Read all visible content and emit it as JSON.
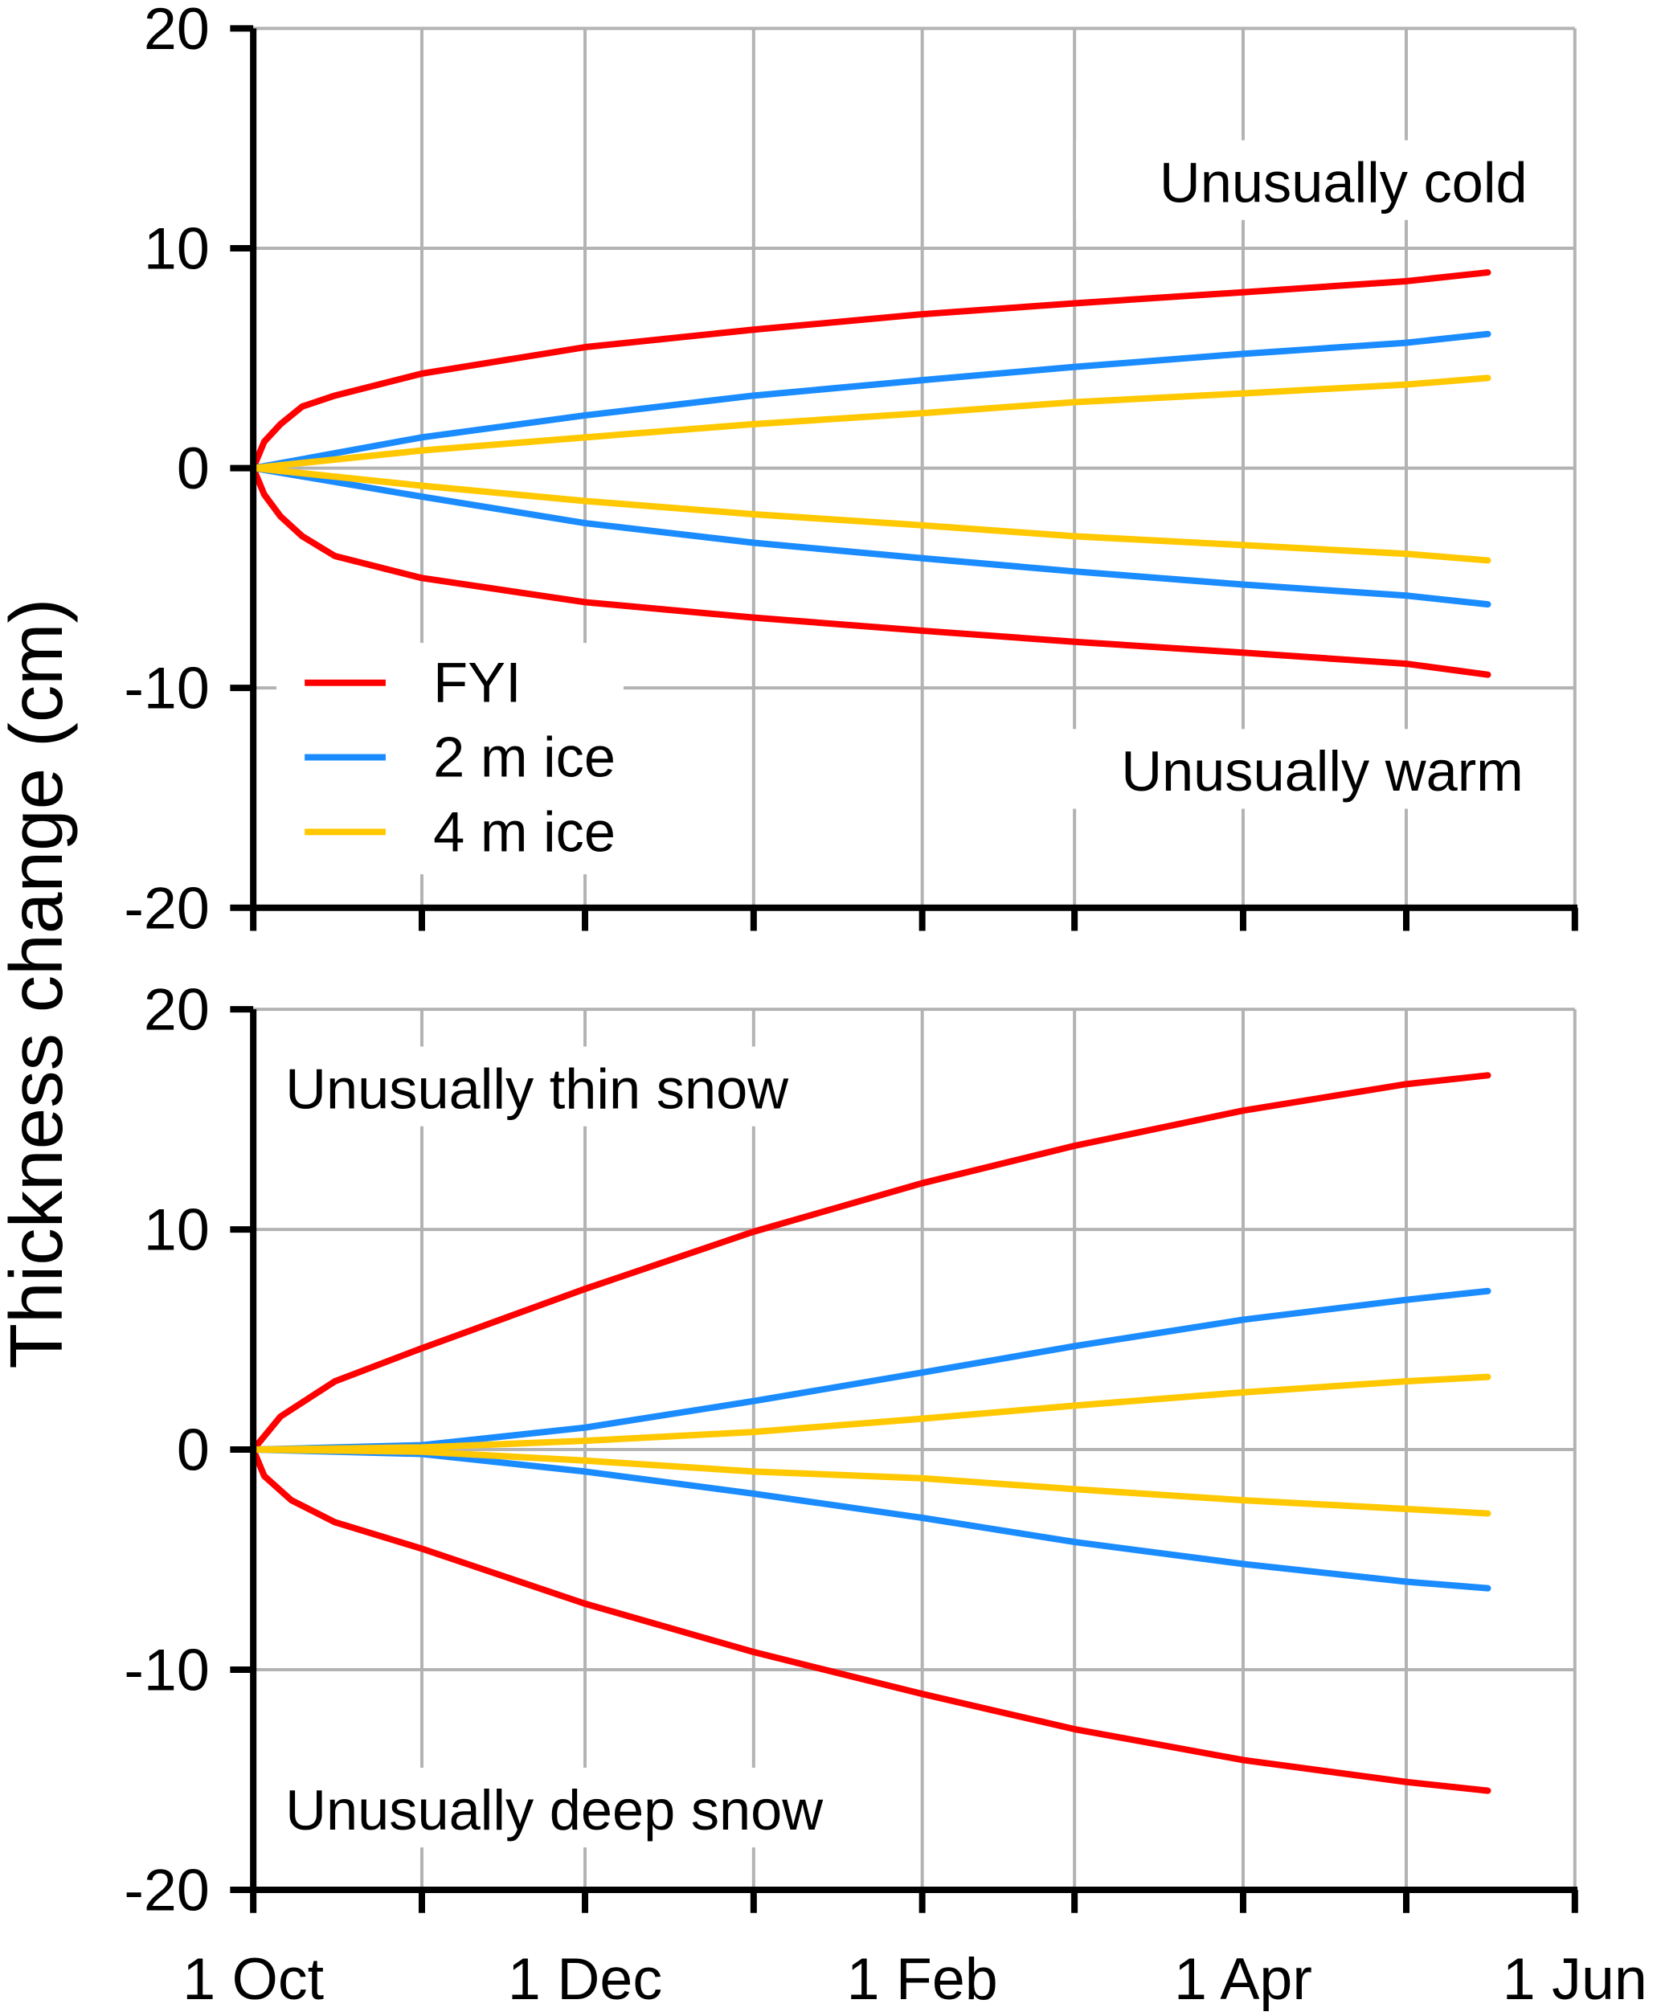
{
  "ylabel": "Thickness change (cm)",
  "x_tick_labels": [
    "1 Oct",
    "1 Dec",
    "1 Feb",
    "1 Apr",
    "1 Jun"
  ],
  "legend": [
    {
      "name": "FYI",
      "color": "#ff0000"
    },
    {
      "name": "2 m ice",
      "color": "#1a8cff"
    },
    {
      "name": "4 m ice",
      "color": "#ffc800"
    }
  ],
  "chart_data": [
    {
      "type": "line",
      "panel": "top",
      "ylim": [
        -20,
        20
      ],
      "yticks": [
        20,
        10,
        0,
        -10,
        -20
      ],
      "xlim": [
        "Oct 1",
        "Jun 1"
      ],
      "grid": true,
      "legend_placement": "bottom-left",
      "annotations": [
        "Unusually cold",
        "Unusually warm"
      ],
      "series": [
        {
          "name": "FYI",
          "case": "Unusually cold",
          "color": "#ff0000",
          "x": [
            "Oct 1",
            "Oct 3",
            "Oct 6",
            "Oct 10",
            "Oct 16",
            "Nov 1",
            "Dec 1",
            "Jan 1",
            "Feb 1",
            "Mar 1",
            "Apr 1",
            "May 1",
            "May 16"
          ],
          "y": [
            0,
            1.2,
            2.0,
            2.8,
            3.3,
            4.3,
            5.5,
            6.3,
            7.0,
            7.5,
            8.0,
            8.5,
            8.9
          ]
        },
        {
          "name": "FYI",
          "case": "Unusually warm",
          "color": "#ff0000",
          "x": [
            "Oct 1",
            "Oct 3",
            "Oct 6",
            "Oct 10",
            "Oct 16",
            "Nov 1",
            "Dec 1",
            "Jan 1",
            "Feb 1",
            "Mar 1",
            "Apr 1",
            "May 1",
            "May 16"
          ],
          "y": [
            0,
            -1.2,
            -2.2,
            -3.1,
            -4.0,
            -5.0,
            -6.1,
            -6.8,
            -7.4,
            -7.9,
            -8.4,
            -8.9,
            -9.4
          ]
        },
        {
          "name": "2 m ice",
          "case": "Unusually cold",
          "color": "#1a8cff",
          "x": [
            "Oct 1",
            "Nov 1",
            "Dec 1",
            "Jan 1",
            "Feb 1",
            "Mar 1",
            "Apr 1",
            "May 1",
            "May 16"
          ],
          "y": [
            0,
            1.4,
            2.4,
            3.3,
            4.0,
            4.6,
            5.2,
            5.7,
            6.1
          ]
        },
        {
          "name": "2 m ice",
          "case": "Unusually warm",
          "color": "#1a8cff",
          "x": [
            "Oct 1",
            "Nov 1",
            "Dec 1",
            "Jan 1",
            "Feb 1",
            "Mar 1",
            "Apr 1",
            "May 1",
            "May 16"
          ],
          "y": [
            0,
            -1.3,
            -2.5,
            -3.4,
            -4.1,
            -4.7,
            -5.3,
            -5.8,
            -6.2
          ]
        },
        {
          "name": "4 m ice",
          "case": "Unusually cold",
          "color": "#ffc800",
          "x": [
            "Oct 1",
            "Nov 1",
            "Dec 1",
            "Jan 1",
            "Feb 1",
            "Mar 1",
            "Apr 1",
            "May 1",
            "May 16"
          ],
          "y": [
            0,
            0.8,
            1.4,
            2.0,
            2.5,
            3.0,
            3.4,
            3.8,
            4.1
          ]
        },
        {
          "name": "4 m ice",
          "case": "Unusually warm",
          "color": "#ffc800",
          "x": [
            "Oct 1",
            "Nov 1",
            "Dec 1",
            "Jan 1",
            "Feb 1",
            "Mar 1",
            "Apr 1",
            "May 1",
            "May 16"
          ],
          "y": [
            0,
            -0.8,
            -1.5,
            -2.1,
            -2.6,
            -3.1,
            -3.5,
            -3.9,
            -4.2
          ]
        }
      ]
    },
    {
      "type": "line",
      "panel": "bottom",
      "ylim": [
        -20,
        20
      ],
      "yticks": [
        20,
        10,
        0,
        -10,
        -20
      ],
      "xlim": [
        "Oct 1",
        "Jun 1"
      ],
      "grid": true,
      "annotations": [
        "Unusually thin snow",
        "Unusually deep snow"
      ],
      "series": [
        {
          "name": "FYI",
          "case": "Unusually thin snow",
          "color": "#ff0000",
          "x": [
            "Oct 1",
            "Oct 6",
            "Oct 16",
            "Nov 1",
            "Dec 1",
            "Jan 1",
            "Feb 1",
            "Mar 1",
            "Apr 1",
            "May 1",
            "May 16"
          ],
          "y": [
            0,
            1.5,
            3.1,
            4.6,
            7.3,
            9.9,
            12.1,
            13.8,
            15.4,
            16.6,
            17.0
          ]
        },
        {
          "name": "FYI",
          "case": "Unusually deep snow",
          "color": "#ff0000",
          "x": [
            "Oct 1",
            "Oct 3",
            "Oct 8",
            "Oct 16",
            "Nov 1",
            "Dec 1",
            "Jan 1",
            "Feb 1",
            "Mar 1",
            "Apr 1",
            "May 1",
            "May 16"
          ],
          "y": [
            0,
            -1.2,
            -2.3,
            -3.3,
            -4.5,
            -7.0,
            -9.2,
            -11.1,
            -12.7,
            -14.1,
            -15.1,
            -15.5
          ]
        },
        {
          "name": "2 m ice",
          "case": "Unusually thin snow",
          "color": "#1a8cff",
          "x": [
            "Oct 1",
            "Nov 1",
            "Dec 1",
            "Jan 1",
            "Feb 1",
            "Mar 1",
            "Apr 1",
            "May 1",
            "May 16"
          ],
          "y": [
            0,
            0.2,
            1.0,
            2.2,
            3.5,
            4.7,
            5.9,
            6.8,
            7.2
          ]
        },
        {
          "name": "2 m ice",
          "case": "Unusually deep snow",
          "color": "#1a8cff",
          "x": [
            "Oct 1",
            "Nov 1",
            "Dec 1",
            "Jan 1",
            "Feb 1",
            "Mar 1",
            "Apr 1",
            "May 1",
            "May 16"
          ],
          "y": [
            0,
            -0.2,
            -1.0,
            -2.0,
            -3.1,
            -4.2,
            -5.2,
            -6.0,
            -6.3
          ]
        },
        {
          "name": "4 m ice",
          "case": "Unusually thin snow",
          "color": "#ffc800",
          "x": [
            "Oct 1",
            "Nov 1",
            "Dec 1",
            "Jan 1",
            "Feb 1",
            "Mar 1",
            "Apr 1",
            "May 1",
            "May 16"
          ],
          "y": [
            0,
            0.1,
            0.4,
            0.8,
            1.4,
            2.0,
            2.6,
            3.1,
            3.3
          ]
        },
        {
          "name": "4 m ice",
          "case": "Unusually deep snow",
          "color": "#ffc800",
          "x": [
            "Oct 1",
            "Nov 1",
            "Dec 1",
            "Jan 1",
            "Feb 1",
            "Mar 1",
            "Apr 1",
            "May 1",
            "May 16"
          ],
          "y": [
            0,
            -0.1,
            -0.5,
            -1.0,
            -1.3,
            -1.8,
            -2.3,
            -2.7,
            -2.9
          ]
        }
      ]
    }
  ]
}
